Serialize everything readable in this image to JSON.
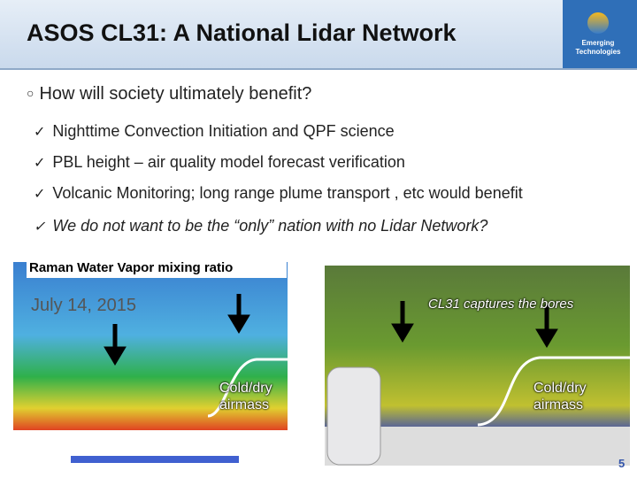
{
  "header": {
    "title": "ASOS CL31: A National Lidar Network",
    "logo": "Emerging Technologies"
  },
  "bullet": "How will society ultimately benefit?",
  "checks": [
    "Nighttime Convection Initiation and QPF science",
    "PBL height – air quality model forecast verification",
    "Volcanic Monitoring; long range plume transport , etc would benefit",
    "We do not want to be the “only” nation with no Lidar Network?"
  ],
  "figures": {
    "left": {
      "caption": "Raman Water Vapor mixing ratio",
      "date": "July 14, 2015",
      "annotation": "Cold/dry airmass"
    },
    "right": {
      "caption": "CL31 captures the bores",
      "annotation": "Cold/dry airmass"
    }
  },
  "page_number": "5"
}
